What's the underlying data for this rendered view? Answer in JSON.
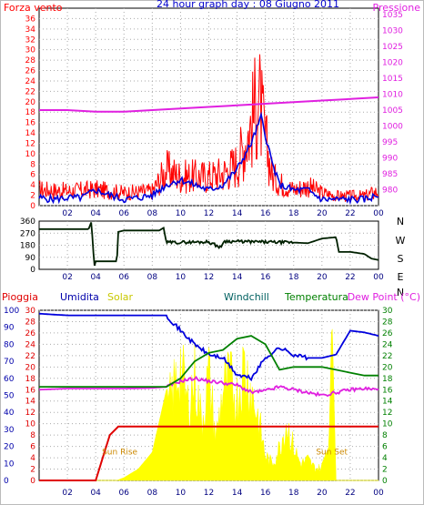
{
  "chart_data": [
    {
      "type": "line",
      "panel": "wind-pressure",
      "title": "24 hour graph day : 08 Giugno 2011",
      "left_label": "Forza vento",
      "right_label": "Pressione",
      "x_ticks": [
        "02",
        "04",
        "06",
        "08",
        "10",
        "12",
        "14",
        "16",
        "18",
        "20",
        "22",
        "00"
      ],
      "xlim": [
        0,
        24
      ],
      "left_ylim": [
        0,
        38
      ],
      "left_ticks": [
        "0",
        "2",
        "4",
        "6",
        "8",
        "10",
        "12",
        "14",
        "16",
        "18",
        "20",
        "22",
        "24",
        "26",
        "28",
        "30",
        "32",
        "34",
        "36"
      ],
      "right_ylim": [
        975,
        1037
      ],
      "right_ticks": [
        "980",
        "985",
        "990",
        "995",
        "1000",
        "1005",
        "1010",
        "1015",
        "1020",
        "1025",
        "1030",
        "1035"
      ],
      "grid": true,
      "colors": {
        "gust": "#ff0000",
        "wind": "#0000dd",
        "pressure": "#e020e0"
      },
      "gust_envelope": {
        "x": [
          0,
          2,
          4,
          6,
          8,
          9,
          10,
          12,
          13,
          14,
          15,
          15.5,
          16,
          16.5,
          17,
          18,
          19,
          20,
          21,
          22,
          23,
          24
        ],
        "y": [
          5,
          4.5,
          5,
          4,
          4.5,
          11,
          9,
          9,
          10,
          13,
          25,
          34,
          20,
          9,
          7,
          5,
          6,
          4,
          3,
          3,
          3,
          4.5
        ]
      },
      "wind_speed": {
        "x": [
          0,
          1,
          2,
          3,
          4,
          5,
          6,
          7,
          8,
          9,
          10,
          11,
          12,
          13,
          14,
          15,
          15.7,
          16.5,
          17,
          18,
          19,
          20,
          21,
          22,
          23,
          24
        ],
        "y": [
          1.5,
          1.2,
          1.5,
          1.5,
          3,
          2,
          1.2,
          1.5,
          2,
          4,
          5,
          4,
          3,
          4,
          7,
          12,
          17,
          8,
          4,
          3,
          3,
          1.2,
          1.2,
          1.2,
          1.2,
          2
        ]
      },
      "pressure": {
        "x": [
          0,
          2,
          4,
          6,
          8,
          10,
          12,
          14,
          16,
          18,
          20,
          22,
          24
        ],
        "y": [
          1005,
          1005,
          1004.5,
          1004.5,
          1005,
          1005.5,
          1006,
          1006.5,
          1007,
          1007.5,
          1008,
          1008.5,
          1009
        ]
      }
    },
    {
      "type": "line",
      "panel": "wind-direction",
      "x_ticks": [
        "02",
        "04",
        "06",
        "08",
        "10",
        "12",
        "14",
        "16",
        "18",
        "20",
        "22",
        "00"
      ],
      "xlim": [
        0,
        24
      ],
      "left_ylim": [
        0,
        360
      ],
      "left_ticks": [
        "0",
        "90",
        "180",
        "270",
        "360"
      ],
      "right_ticks": [
        "N",
        "W",
        "S",
        "E",
        "N"
      ],
      "grid": true,
      "colors": {
        "direction": "#002000"
      },
      "direction": {
        "x": [
          0,
          3.5,
          3.7,
          3.9,
          4.0,
          5.5,
          5.6,
          6.0,
          8.5,
          8.8,
          9.0,
          12,
          12.9,
          13.0,
          18,
          19,
          19.3,
          20,
          21,
          21.2,
          22,
          23,
          23.5,
          24
        ],
        "y": [
          300,
          300,
          355,
          20,
          60,
          60,
          280,
          290,
          290,
          310,
          200,
          205,
          160,
          210,
          200,
          195,
          205,
          230,
          240,
          130,
          130,
          115,
          80,
          70
        ]
      }
    },
    {
      "type": "area",
      "panel": "rain-humidity-solar-temperature",
      "x_ticks": [
        "02",
        "04",
        "06",
        "08",
        "10",
        "12",
        "14",
        "16",
        "18",
        "20",
        "22",
        "00"
      ],
      "xlim": [
        0,
        24
      ],
      "header_labels": {
        "rain": "Pioggia",
        "humidity": "Umidita",
        "solar": "Solar",
        "windchill": "Windchill",
        "temperature": "Temperatura",
        "dew_point": "Dew Point (°C)"
      },
      "left_ylim": [
        0,
        100
      ],
      "left_ticks": [
        "0",
        "10",
        "20",
        "30",
        "40",
        "50",
        "60",
        "70",
        "80",
        "90",
        "100"
      ],
      "rain_ylim": [
        0,
        30
      ],
      "rain_ticks": [
        "0",
        "2",
        "4",
        "6",
        "8",
        "10",
        "12",
        "14",
        "16",
        "18",
        "20",
        "22",
        "24",
        "26",
        "28",
        "30"
      ],
      "right_ylim": [
        0,
        30
      ],
      "right_ticks": [
        "0",
        "2",
        "4",
        "6",
        "8",
        "10",
        "12",
        "14",
        "16",
        "18",
        "20",
        "22",
        "24",
        "26",
        "28",
        "30"
      ],
      "grid": true,
      "annotations": {
        "sunrise": "Sun Rise",
        "sunset": "Sun Set"
      },
      "annotation_x": {
        "sunrise": 5.7,
        "sunset": 20.7
      },
      "colors": {
        "rain": "#e00000",
        "humidity": "#0000dd",
        "solar": "#ffff00",
        "temperature": "#008000",
        "dew_point": "#e020e0"
      },
      "rain": {
        "x": [
          0,
          4.0,
          4.5,
          5.0,
          5.6,
          24
        ],
        "y": [
          0,
          0,
          4,
          8,
          9.5,
          9.5
        ]
      },
      "humidity": {
        "x": [
          0,
          2,
          4,
          6,
          8,
          9,
          10,
          11,
          12,
          13,
          14,
          15,
          16,
          17,
          18,
          19,
          20,
          21,
          22,
          23,
          24
        ],
        "y": [
          98,
          97,
          97,
          97,
          97,
          97,
          88,
          80,
          74,
          72,
          62,
          60,
          72,
          78,
          74,
          72,
          72,
          74,
          88,
          87,
          85
        ]
      },
      "temperature": {
        "x": [
          0,
          2,
          4,
          6,
          8,
          9,
          10,
          11,
          12,
          13,
          14,
          15,
          16,
          17,
          18,
          19,
          20,
          21,
          22,
          23,
          24
        ],
        "y": [
          16.5,
          16.5,
          16.5,
          16.5,
          16.5,
          16.5,
          18,
          21,
          22.5,
          23,
          25,
          25.5,
          24,
          19.5,
          20,
          20,
          20,
          19.5,
          19,
          18.5,
          18.5
        ]
      },
      "dew_point": {
        "x": [
          0,
          2,
          4,
          6,
          8,
          9,
          10,
          11,
          12,
          13,
          14,
          15,
          16,
          17,
          18,
          19,
          20,
          21,
          22,
          23,
          24
        ],
        "y": [
          16,
          16.2,
          16.2,
          16.2,
          16.3,
          16.5,
          17.5,
          18,
          17.5,
          17.2,
          16.8,
          15.5,
          15.8,
          16.5,
          16,
          15.5,
          15,
          15.5,
          16,
          16.2,
          16
        ]
      },
      "solar": {
        "x": [
          0,
          5.5,
          6.0,
          7.0,
          8.0,
          9.0,
          9.5,
          10.0,
          10.5,
          11.0,
          11.5,
          12.0,
          12.5,
          13.0,
          13.5,
          14.0,
          14.5,
          15.0,
          15.5,
          16.0,
          16.5,
          17.0,
          17.5,
          18.0,
          18.5,
          19.0,
          19.5,
          20.0,
          20.5,
          20.7,
          21,
          24
        ],
        "y": [
          0,
          0,
          0.5,
          2,
          5,
          16,
          22,
          28,
          18,
          25,
          14,
          26,
          10,
          22,
          24,
          20,
          28,
          22,
          15,
          6,
          4,
          8,
          14,
          8,
          4,
          5,
          3,
          3,
          6,
          30,
          0,
          0
        ]
      }
    }
  ]
}
